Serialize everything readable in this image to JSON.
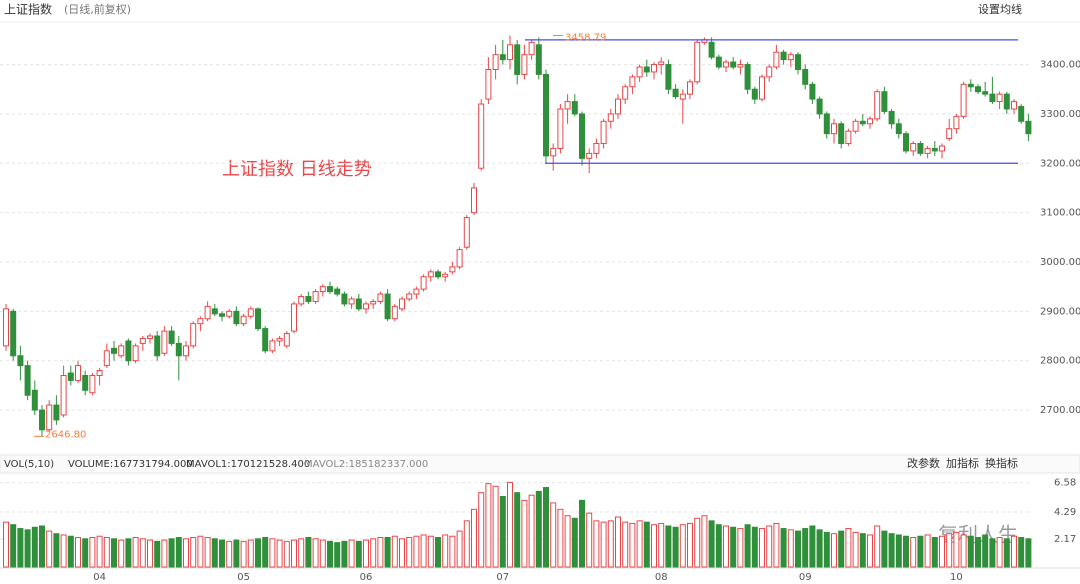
{
  "chart_data": {
    "type": "candlestick",
    "title": "上证指数",
    "subtitle": "(日线,前复权)",
    "menu": "设置均线",
    "annotation": "上证指数 日线走势",
    "watermark": "复利人生",
    "up_color": "#e8474a",
    "down_color": "#2f8f3a",
    "channel_color": "#4a4ae8",
    "hlines": [
      3450,
      3200
    ],
    "ylim": [
      2615,
      3470
    ],
    "yticks": [
      {
        "value": 2700,
        "label": "2700.00"
      },
      {
        "value": 2800,
        "label": "2800.00"
      },
      {
        "value": 2900,
        "label": "2900.00"
      },
      {
        "value": 3000,
        "label": "3000.00"
      },
      {
        "value": 3100,
        "label": "3100.00"
      },
      {
        "value": 3200,
        "label": "3200.00"
      },
      {
        "value": 3300,
        "label": "3300.00"
      },
      {
        "value": 3400,
        "label": "3400.00"
      }
    ],
    "high_label": {
      "value": 3458.79,
      "label": "3458.79"
    },
    "low_label": {
      "value": 2646.8,
      "label": "2646.80"
    },
    "categories": [
      null,
      null,
      null,
      null,
      null,
      null,
      null,
      null,
      null,
      null,
      null,
      null,
      null,
      "04",
      null,
      null,
      null,
      null,
      null,
      null,
      null,
      null,
      null,
      null,
      null,
      null,
      null,
      null,
      null,
      null,
      null,
      null,
      null,
      "05",
      null,
      null,
      null,
      null,
      null,
      null,
      null,
      null,
      null,
      null,
      null,
      null,
      null,
      null,
      null,
      null,
      "06",
      null,
      null,
      null,
      null,
      null,
      null,
      null,
      null,
      null,
      null,
      null,
      null,
      null,
      null,
      null,
      null,
      null,
      null,
      "07",
      null,
      null,
      null,
      null,
      null,
      null,
      null,
      null,
      null,
      null,
      null,
      null,
      null,
      null,
      null,
      null,
      null,
      null,
      null,
      null,
      null,
      "08",
      null,
      null,
      null,
      null,
      null,
      null,
      null,
      null,
      null,
      null,
      null,
      null,
      null,
      null,
      null,
      null,
      null,
      null,
      null,
      "09",
      null,
      null,
      null,
      null,
      null,
      null,
      null,
      null,
      null,
      null,
      null,
      null,
      null,
      null,
      null,
      null,
      null,
      null,
      null,
      null,
      "10",
      null,
      null,
      null,
      null,
      null,
      null,
      null,
      null,
      null,
      null
    ],
    "ohlc": [
      [
        2830,
        2915,
        2820,
        2905
      ],
      [
        2900,
        2905,
        2800,
        2810
      ],
      [
        2810,
        2830,
        2760,
        2790
      ],
      [
        2790,
        2800,
        2720,
        2730
      ],
      [
        2740,
        2760,
        2690,
        2700
      ],
      [
        2700,
        2710,
        2646.8,
        2660
      ],
      [
        2660,
        2720,
        2655,
        2710
      ],
      [
        2710,
        2730,
        2670,
        2680
      ],
      [
        2690,
        2790,
        2685,
        2770
      ],
      [
        2775,
        2790,
        2750,
        2760
      ],
      [
        2760,
        2800,
        2755,
        2790
      ],
      [
        2770,
        2780,
        2730,
        2740
      ],
      [
        2735,
        2775,
        2730,
        2770
      ],
      [
        2770,
        2785,
        2750,
        2780
      ],
      [
        2790,
        2835,
        2785,
        2820
      ],
      [
        2825,
        2840,
        2800,
        2815
      ],
      [
        2810,
        2835,
        2805,
        2830
      ],
      [
        2840,
        2845,
        2790,
        2800
      ],
      [
        2800,
        2835,
        2795,
        2830
      ],
      [
        2835,
        2850,
        2820,
        2845
      ],
      [
        2845,
        2855,
        2835,
        2850
      ],
      [
        2850,
        2860,
        2800,
        2810
      ],
      [
        2815,
        2870,
        2810,
        2860
      ],
      [
        2860,
        2870,
        2830,
        2835
      ],
      [
        2835,
        2850,
        2760,
        2810
      ],
      [
        2810,
        2840,
        2800,
        2830
      ],
      [
        2830,
        2880,
        2825,
        2875
      ],
      [
        2875,
        2890,
        2860,
        2885
      ],
      [
        2885,
        2920,
        2880,
        2910
      ],
      [
        2905,
        2915,
        2890,
        2895
      ],
      [
        2895,
        2900,
        2880,
        2890
      ],
      [
        2890,
        2905,
        2885,
        2900
      ],
      [
        2900,
        2910,
        2870,
        2875
      ],
      [
        2875,
        2895,
        2870,
        2890
      ],
      [
        2890,
        2910,
        2885,
        2905
      ],
      [
        2905,
        2908,
        2860,
        2865
      ],
      [
        2865,
        2870,
        2815,
        2820
      ],
      [
        2820,
        2845,
        2815,
        2840
      ],
      [
        2840,
        2850,
        2830,
        2845
      ],
      [
        2830,
        2860,
        2825,
        2855
      ],
      [
        2860,
        2920,
        2855,
        2915
      ],
      [
        2915,
        2935,
        2910,
        2930
      ],
      [
        2930,
        2940,
        2915,
        2920
      ],
      [
        2920,
        2945,
        2915,
        2940
      ],
      [
        2940,
        2955,
        2930,
        2950
      ],
      [
        2950,
        2960,
        2935,
        2940
      ],
      [
        2945,
        2950,
        2930,
        2935
      ],
      [
        2935,
        2940,
        2910,
        2915
      ],
      [
        2915,
        2930,
        2905,
        2925
      ],
      [
        2925,
        2935,
        2900,
        2905
      ],
      [
        2905,
        2920,
        2895,
        2915
      ],
      [
        2915,
        2925,
        2905,
        2920
      ],
      [
        2920,
        2940,
        2915,
        2935
      ],
      [
        2935,
        2945,
        2880,
        2885
      ],
      [
        2885,
        2915,
        2880,
        2910
      ],
      [
        2905,
        2930,
        2900,
        2925
      ],
      [
        2925,
        2940,
        2920,
        2935
      ],
      [
        2935,
        2950,
        2925,
        2945
      ],
      [
        2945,
        2975,
        2940,
        2970
      ],
      [
        2970,
        2985,
        2960,
        2980
      ],
      [
        2980,
        2985,
        2965,
        2970
      ],
      [
        2970,
        2980,
        2960,
        2975
      ],
      [
        2980,
        3000,
        2975,
        2990
      ],
      [
        2990,
        3030,
        2985,
        3025
      ],
      [
        3030,
        3095,
        3025,
        3090
      ],
      [
        3100,
        3160,
        3095,
        3150
      ],
      [
        3190,
        3330,
        3185,
        3320
      ],
      [
        3330,
        3415,
        3320,
        3390
      ],
      [
        3390,
        3440,
        3370,
        3420
      ],
      [
        3420,
        3450,
        3400,
        3410
      ],
      [
        3410,
        3458.79,
        3390,
        3440
      ],
      [
        3440,
        3450,
        3360,
        3380
      ],
      [
        3380,
        3440,
        3370,
        3420
      ],
      [
        3420,
        3450,
        3410,
        3445
      ],
      [
        3440,
        3455,
        3370,
        3380
      ],
      [
        3380,
        3390,
        3200,
        3215
      ],
      [
        3215,
        3240,
        3185,
        3230
      ],
      [
        3230,
        3320,
        3220,
        3310
      ],
      [
        3310,
        3340,
        3280,
        3325
      ],
      [
        3325,
        3340,
        3295,
        3300
      ],
      [
        3300,
        3305,
        3195,
        3210
      ],
      [
        3210,
        3230,
        3180,
        3220
      ],
      [
        3220,
        3250,
        3210,
        3240
      ],
      [
        3240,
        3290,
        3230,
        3285
      ],
      [
        3285,
        3310,
        3270,
        3300
      ],
      [
        3300,
        3340,
        3290,
        3330
      ],
      [
        3330,
        3360,
        3320,
        3355
      ],
      [
        3355,
        3380,
        3340,
        3375
      ],
      [
        3375,
        3400,
        3365,
        3395
      ],
      [
        3395,
        3410,
        3375,
        3385
      ],
      [
        3385,
        3405,
        3370,
        3400
      ],
      [
        3400,
        3415,
        3380,
        3405
      ],
      [
        3400,
        3410,
        3340,
        3350
      ],
      [
        3350,
        3360,
        3330,
        3335
      ],
      [
        3330,
        3350,
        3280,
        3340
      ],
      [
        3340,
        3370,
        3330,
        3365
      ],
      [
        3365,
        3450,
        3360,
        3445
      ],
      [
        3445,
        3455,
        3440,
        3450
      ],
      [
        3445,
        3455,
        3410,
        3415
      ],
      [
        3415,
        3420,
        3390,
        3395
      ],
      [
        3395,
        3410,
        3385,
        3405
      ],
      [
        3405,
        3415,
        3390,
        3395
      ],
      [
        3395,
        3410,
        3380,
        3400
      ],
      [
        3400,
        3405,
        3340,
        3350
      ],
      [
        3350,
        3355,
        3320,
        3330
      ],
      [
        3330,
        3380,
        3325,
        3375
      ],
      [
        3375,
        3400,
        3365,
        3395
      ],
      [
        3395,
        3440,
        3390,
        3425
      ],
      [
        3425,
        3430,
        3400,
        3410
      ],
      [
        3410,
        3425,
        3395,
        3420
      ],
      [
        3420,
        3425,
        3380,
        3390
      ],
      [
        3390,
        3400,
        3350,
        3360
      ],
      [
        3360,
        3365,
        3320,
        3330
      ],
      [
        3330,
        3335,
        3290,
        3300
      ],
      [
        3300,
        3305,
        3250,
        3260
      ],
      [
        3260,
        3290,
        3240,
        3280
      ],
      [
        3280,
        3285,
        3230,
        3240
      ],
      [
        3240,
        3270,
        3235,
        3265
      ],
      [
        3265,
        3290,
        3260,
        3285
      ],
      [
        3285,
        3300,
        3275,
        3280
      ],
      [
        3280,
        3295,
        3270,
        3290
      ],
      [
        3290,
        3350,
        3285,
        3345
      ],
      [
        3345,
        3355,
        3300,
        3305
      ],
      [
        3305,
        3310,
        3270,
        3280
      ],
      [
        3280,
        3290,
        3250,
        3260
      ],
      [
        3260,
        3265,
        3220,
        3225
      ],
      [
        3225,
        3245,
        3215,
        3240
      ],
      [
        3240,
        3245,
        3215,
        3220
      ],
      [
        3220,
        3235,
        3210,
        3230
      ],
      [
        3230,
        3245,
        3215,
        3225
      ],
      [
        3225,
        3240,
        3210,
        3235
      ],
      [
        3250,
        3290,
        3245,
        3270
      ],
      [
        3270,
        3300,
        3260,
        3295
      ],
      [
        3295,
        3365,
        3290,
        3360
      ],
      [
        3360,
        3370,
        3345,
        3355
      ],
      [
        3355,
        3360,
        3340,
        3345
      ],
      [
        3345,
        3365,
        3335,
        3340
      ],
      [
        3340,
        3375,
        3320,
        3325
      ],
      [
        3325,
        3345,
        3310,
        3340
      ],
      [
        3340,
        3345,
        3300,
        3310
      ],
      [
        3310,
        3330,
        3300,
        3325
      ],
      [
        3315,
        3320,
        3280,
        3285
      ],
      [
        3285,
        3300,
        3245,
        3260
      ]
    ],
    "volume_panel": {
      "label": "VOL(5,10)",
      "volume_text": "VOLUME:167731794.000",
      "mavol1": "MAVOL1:170121528.400",
      "mavol2": "MAVOL2:185182337.000",
      "mavol1_color": "#e040e0",
      "mavol2_color": "#999999",
      "buttons": [
        "改参数",
        "加指标",
        "换指标"
      ],
      "ylim": [
        0,
        7.1
      ],
      "yticks": [
        2.17,
        4.29,
        6.58
      ],
      "values": [
        3.5,
        3.3,
        3.0,
        2.9,
        3.1,
        3.2,
        2.8,
        2.6,
        2.5,
        2.4,
        2.3,
        2.2,
        2.3,
        2.4,
        2.3,
        2.2,
        2.1,
        2.2,
        2.3,
        2.2,
        2.1,
        2.0,
        2.1,
        2.2,
        2.3,
        2.2,
        2.3,
        2.4,
        2.3,
        2.2,
        2.1,
        2.0,
        2.1,
        2.0,
        2.1,
        2.2,
        2.3,
        2.2,
        2.1,
        2.0,
        2.1,
        2.2,
        2.3,
        2.2,
        2.1,
        2.0,
        1.9,
        2.0,
        2.1,
        2.0,
        2.1,
        2.2,
        2.3,
        2.3,
        2.4,
        2.2,
        2.3,
        2.4,
        2.5,
        2.4,
        2.3,
        2.5,
        2.4,
        2.8,
        3.6,
        4.5,
        5.8,
        6.5,
        6.3,
        5.5,
        6.6,
        5.8,
        5.2,
        5.6,
        5.9,
        6.2,
        5.0,
        4.5,
        4.0,
        3.8,
        5.2,
        4.2,
        3.6,
        3.5,
        3.6,
        3.9,
        3.5,
        3.4,
        3.6,
        3.5,
        3.3,
        3.4,
        3.2,
        3.1,
        3.3,
        3.4,
        3.8,
        4.0,
        3.6,
        3.3,
        3.2,
        3.1,
        3.0,
        3.3,
        3.1,
        3.0,
        3.2,
        3.4,
        3.0,
        2.9,
        2.8,
        3.0,
        3.2,
        2.9,
        2.7,
        2.6,
        2.8,
        3.0,
        2.7,
        2.6,
        2.5,
        3.2,
        2.8,
        2.6,
        2.5,
        2.4,
        2.3,
        2.4,
        2.5,
        2.3,
        2.4,
        2.6,
        2.7,
        2.5,
        2.4,
        2.3,
        2.5,
        2.2,
        2.3,
        2.2,
        2.4,
        2.3,
        2.2
      ]
    }
  }
}
